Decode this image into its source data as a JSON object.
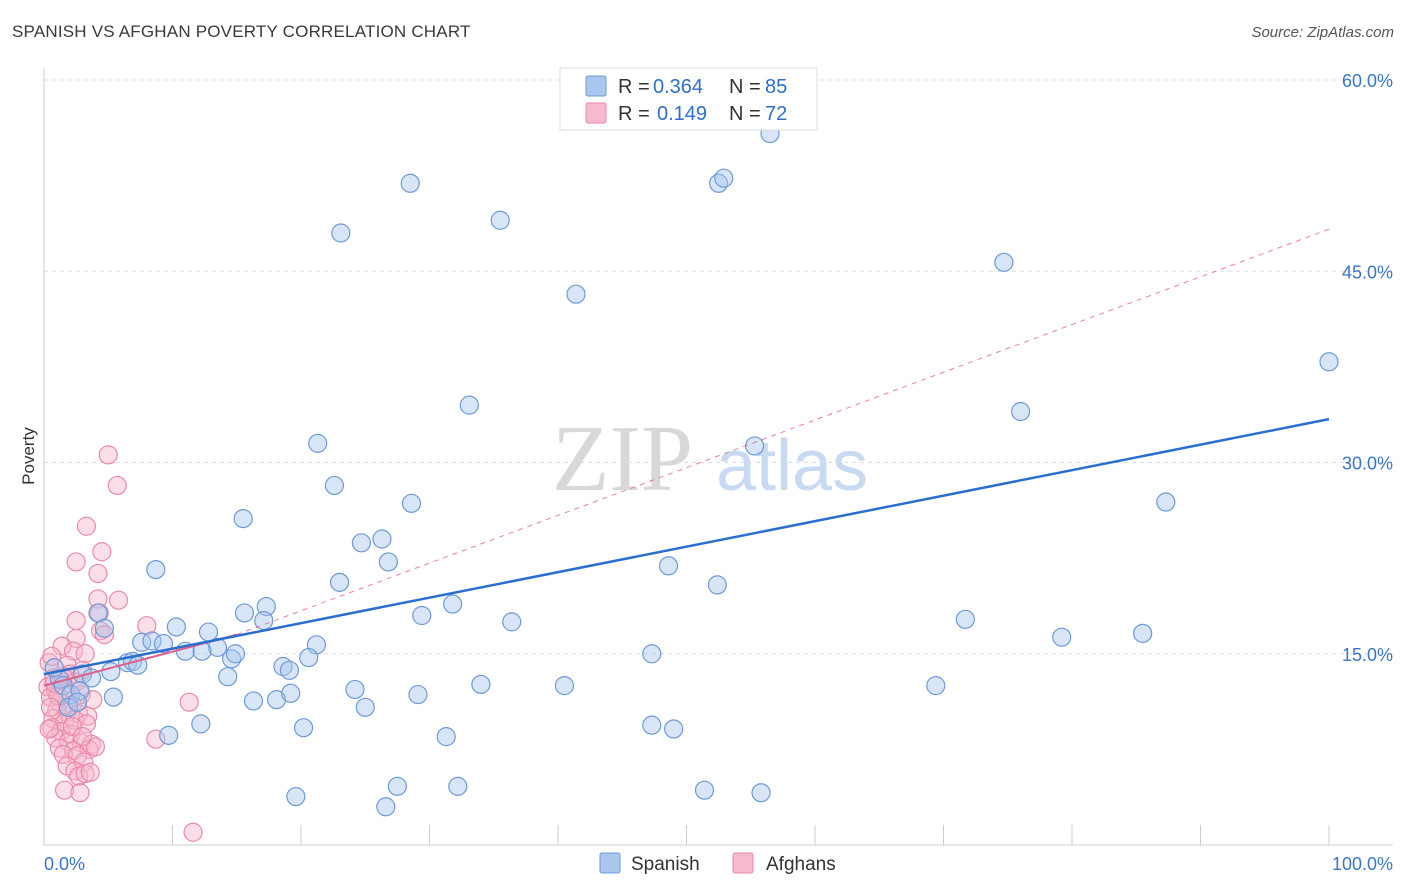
{
  "title": "SPANISH VS AFGHAN POVERTY CORRELATION CHART",
  "source": "Source: ZipAtlas.com",
  "watermark": {
    "zip": "ZIP",
    "atlas": "atlas"
  },
  "legend": {
    "rows": [
      {
        "r_label": "R =",
        "r_value": "0.364",
        "n_label": "N =",
        "n_value": "85"
      },
      {
        "r_label": "R =",
        "r_value": "0.149",
        "n_label": "N =",
        "n_value": "72"
      }
    ]
  },
  "bottom_legend": [
    "Spanish",
    "Afghans"
  ],
  "colors": {
    "spanish_fill": "#a9c6ee",
    "spanish_stroke": "#6e9ad6",
    "spanish_line": "#2a6fd0",
    "afghan_fill": "#f7b9cc",
    "afghan_stroke": "#e98aa7",
    "afghan_line": "#e0608a",
    "grid": "#dddddd",
    "tick_text": "#3a76c8"
  },
  "chart_data": {
    "type": "scatter",
    "title": "SPANISH VS AFGHAN POVERTY CORRELATION CHART",
    "xlabel": "",
    "ylabel": "Poverty",
    "xlim": [
      0,
      100
    ],
    "ylim": [
      0,
      60
    ],
    "x_tick_labels": [
      "0.0%",
      "100.0%"
    ],
    "y_ticks": [
      15,
      30,
      45,
      60
    ],
    "y_tick_labels": [
      "15.0%",
      "30.0%",
      "45.0%",
      "60.0%"
    ],
    "series": [
      {
        "name": "Spanish",
        "trend": {
          "x": [
            0,
            100
          ],
          "y": [
            13.4,
            33.4
          ],
          "style": "solid"
        },
        "points": [
          [
            56.5,
            55.8
          ],
          [
            28.5,
            51.9
          ],
          [
            52.5,
            51.9
          ],
          [
            52.9,
            52.3
          ],
          [
            23.1,
            48.0
          ],
          [
            35.5,
            49.0
          ],
          [
            74.7,
            45.7
          ],
          [
            41.4,
            43.2
          ],
          [
            100,
            37.9
          ],
          [
            33.1,
            34.5
          ],
          [
            21.3,
            31.5
          ],
          [
            55.3,
            31.3
          ],
          [
            22.6,
            28.2
          ],
          [
            28.6,
            26.8
          ],
          [
            76.0,
            34.0
          ],
          [
            87.3,
            26.9
          ],
          [
            15.5,
            25.6
          ],
          [
            24.7,
            23.7
          ],
          [
            26.3,
            24.0
          ],
          [
            26.8,
            22.2
          ],
          [
            8.7,
            21.6
          ],
          [
            23.0,
            20.6
          ],
          [
            48.6,
            21.9
          ],
          [
            52.4,
            20.4
          ],
          [
            4.2,
            18.2
          ],
          [
            15.6,
            18.2
          ],
          [
            17.3,
            18.7
          ],
          [
            17.1,
            17.6
          ],
          [
            29.4,
            18.0
          ],
          [
            31.8,
            18.9
          ],
          [
            36.4,
            17.5
          ],
          [
            71.7,
            17.7
          ],
          [
            85.5,
            16.6
          ],
          [
            79.2,
            16.3
          ],
          [
            10.3,
            17.1
          ],
          [
            12.8,
            16.7
          ],
          [
            14.6,
            14.6
          ],
          [
            14.9,
            15.0
          ],
          [
            13.5,
            15.5
          ],
          [
            11.0,
            15.2
          ],
          [
            12.3,
            15.2
          ],
          [
            7.6,
            15.9
          ],
          [
            8.4,
            16.0
          ],
          [
            9.3,
            15.8
          ],
          [
            4.7,
            17.0
          ],
          [
            21.2,
            15.7
          ],
          [
            20.6,
            14.7
          ],
          [
            18.6,
            14.0
          ],
          [
            19.1,
            13.7
          ],
          [
            6.5,
            14.3
          ],
          [
            6.9,
            14.4
          ],
          [
            7.3,
            14.1
          ],
          [
            5.2,
            13.6
          ],
          [
            3.0,
            13.4
          ],
          [
            3.7,
            13.1
          ],
          [
            14.3,
            13.2
          ],
          [
            1.2,
            13.0
          ],
          [
            0.8,
            13.9
          ],
          [
            1.5,
            12.5
          ],
          [
            2.1,
            11.8
          ],
          [
            2.8,
            12.1
          ],
          [
            1.9,
            10.8
          ],
          [
            2.6,
            11.2
          ],
          [
            5.4,
            11.6
          ],
          [
            16.3,
            11.3
          ],
          [
            18.1,
            11.4
          ],
          [
            19.2,
            11.9
          ],
          [
            24.2,
            12.2
          ],
          [
            29.1,
            11.8
          ],
          [
            34.0,
            12.6
          ],
          [
            40.5,
            12.5
          ],
          [
            69.4,
            12.5
          ],
          [
            47.3,
            15.0
          ],
          [
            25.0,
            10.8
          ],
          [
            20.2,
            9.2
          ],
          [
            12.2,
            9.5
          ],
          [
            9.7,
            8.6
          ],
          [
            31.3,
            8.5
          ],
          [
            47.3,
            9.4
          ],
          [
            49.0,
            9.1
          ],
          [
            19.6,
            3.8
          ],
          [
            27.5,
            4.6
          ],
          [
            32.2,
            4.6
          ],
          [
            51.4,
            4.3
          ],
          [
            26.6,
            3.0
          ],
          [
            55.8,
            4.1
          ]
        ]
      },
      {
        "name": "Afghans",
        "trend": {
          "x": [
            0,
            15
          ],
          "y": [
            12.5,
            16.5
          ],
          "style": "solid",
          "extended": {
            "x": [
              15,
              100
            ],
            "y": [
              16.5,
              48.3
            ],
            "style": "dashed"
          }
        },
        "points": [
          [
            5.0,
            30.6
          ],
          [
            5.7,
            28.2
          ],
          [
            3.3,
            25.0
          ],
          [
            4.5,
            23.0
          ],
          [
            2.5,
            22.2
          ],
          [
            4.2,
            21.3
          ],
          [
            4.2,
            19.3
          ],
          [
            5.8,
            19.2
          ],
          [
            4.3,
            18.2
          ],
          [
            2.5,
            17.6
          ],
          [
            8.0,
            17.2
          ],
          [
            4.4,
            16.8
          ],
          [
            4.7,
            16.5
          ],
          [
            2.5,
            16.2
          ],
          [
            1.4,
            15.6
          ],
          [
            2.3,
            15.2
          ],
          [
            0.4,
            14.3
          ],
          [
            0.6,
            14.8
          ],
          [
            3.2,
            15.0
          ],
          [
            1.8,
            14.1
          ],
          [
            3.0,
            13.7
          ],
          [
            2.0,
            13.4
          ],
          [
            0.8,
            13.1
          ],
          [
            1.3,
            12.9
          ],
          [
            2.5,
            12.8
          ],
          [
            0.3,
            12.4
          ],
          [
            0.9,
            12.1
          ],
          [
            1.7,
            12.0
          ],
          [
            0.5,
            11.6
          ],
          [
            2.9,
            11.8
          ],
          [
            1.2,
            11.2
          ],
          [
            2.2,
            11.0
          ],
          [
            1.0,
            10.6
          ],
          [
            1.8,
            10.4
          ],
          [
            2.7,
            10.3
          ],
          [
            3.4,
            10.1
          ],
          [
            0.7,
            9.9
          ],
          [
            1.6,
            9.6
          ],
          [
            2.4,
            9.8
          ],
          [
            3.3,
            9.5
          ],
          [
            0.6,
            9.2
          ],
          [
            1.3,
            8.9
          ],
          [
            2.1,
            8.7
          ],
          [
            0.9,
            8.4
          ],
          [
            1.9,
            8.1
          ],
          [
            2.9,
            8.0
          ],
          [
            3.7,
            7.9
          ],
          [
            1.2,
            7.6
          ],
          [
            2.3,
            7.4
          ],
          [
            3.5,
            7.5
          ],
          [
            4.0,
            7.7
          ],
          [
            1.5,
            7.1
          ],
          [
            2.6,
            7.0
          ],
          [
            3.1,
            6.5
          ],
          [
            11.3,
            11.2
          ],
          [
            8.7,
            8.3
          ],
          [
            1.8,
            6.2
          ],
          [
            2.4,
            5.8
          ],
          [
            2.7,
            5.4
          ],
          [
            3.2,
            5.6
          ],
          [
            3.6,
            5.7
          ],
          [
            1.6,
            4.3
          ],
          [
            2.8,
            4.1
          ],
          [
            11.6,
            1.0
          ],
          [
            0.4,
            9.1
          ],
          [
            1.1,
            11.7
          ],
          [
            3.8,
            11.4
          ],
          [
            0.8,
            12.7
          ],
          [
            1.5,
            13.2
          ],
          [
            2.2,
            9.3
          ],
          [
            3.0,
            8.5
          ],
          [
            0.5,
            10.8
          ]
        ]
      }
    ]
  }
}
